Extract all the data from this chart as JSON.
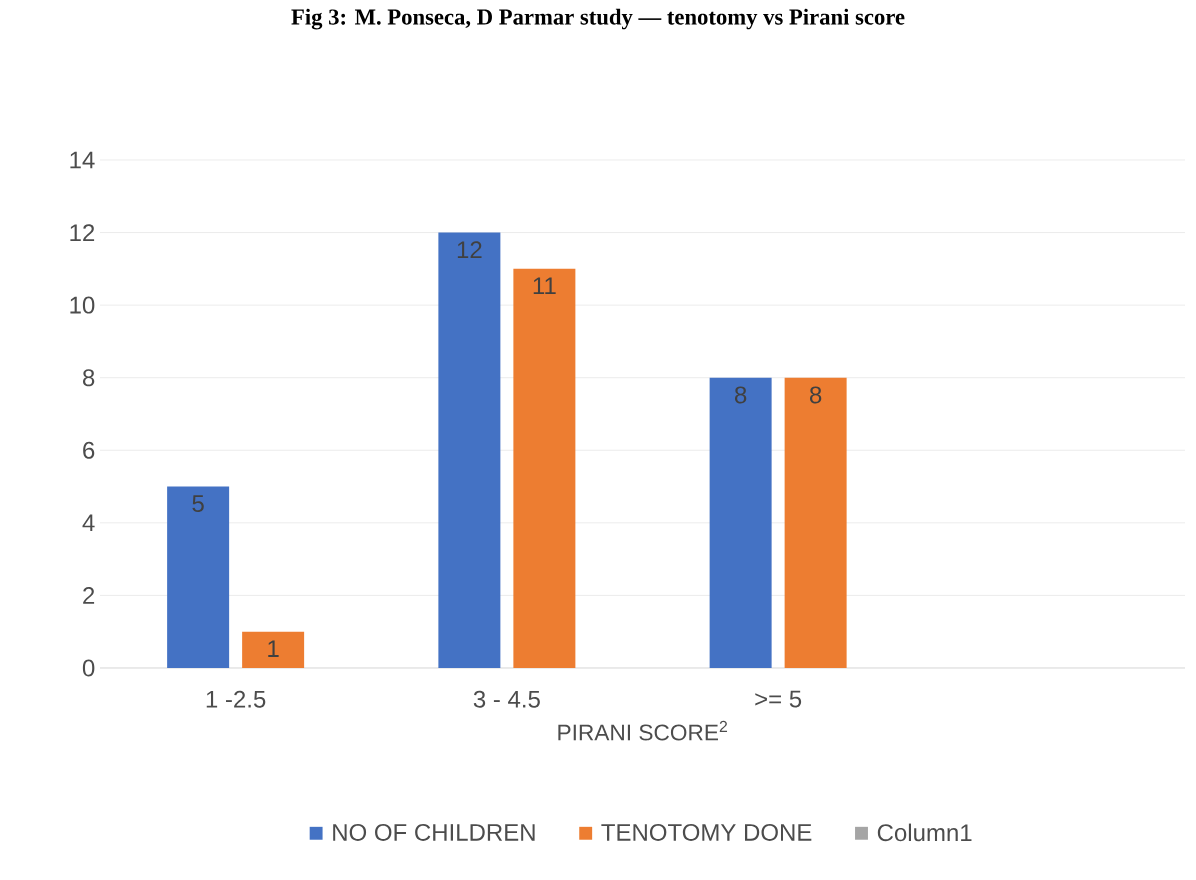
{
  "chart_data": {
    "type": "bar",
    "title": "Fig 3: M. Ponseca, D Parmar study — tenotomy vs Pirani score",
    "xlabel": "PIRANI SCORE$^{2}$",
    "categories": [
      "1 -2.5",
      "3 - 4.5",
      ">= 5",
      null
    ],
    "series": [
      {
        "name": "NO OF CHILDREN",
        "color": "#4472c4",
        "values": [
          5,
          12,
          8,
          null
        ]
      },
      {
        "name": "TENOTOMY DONE",
        "color": "#ed7d31",
        "values": [
          1,
          11,
          8,
          null
        ]
      },
      {
        "name": "Column1",
        "color": "#a5a5a5",
        "values": [
          null,
          null,
          null,
          null
        ]
      }
    ],
    "ylim": [
      0,
      14
    ],
    "yticks": [
      0,
      2,
      4,
      6,
      8,
      10,
      12,
      14
    ],
    "grid": "y",
    "legend": "bottom",
    "data_labels": true
  }
}
